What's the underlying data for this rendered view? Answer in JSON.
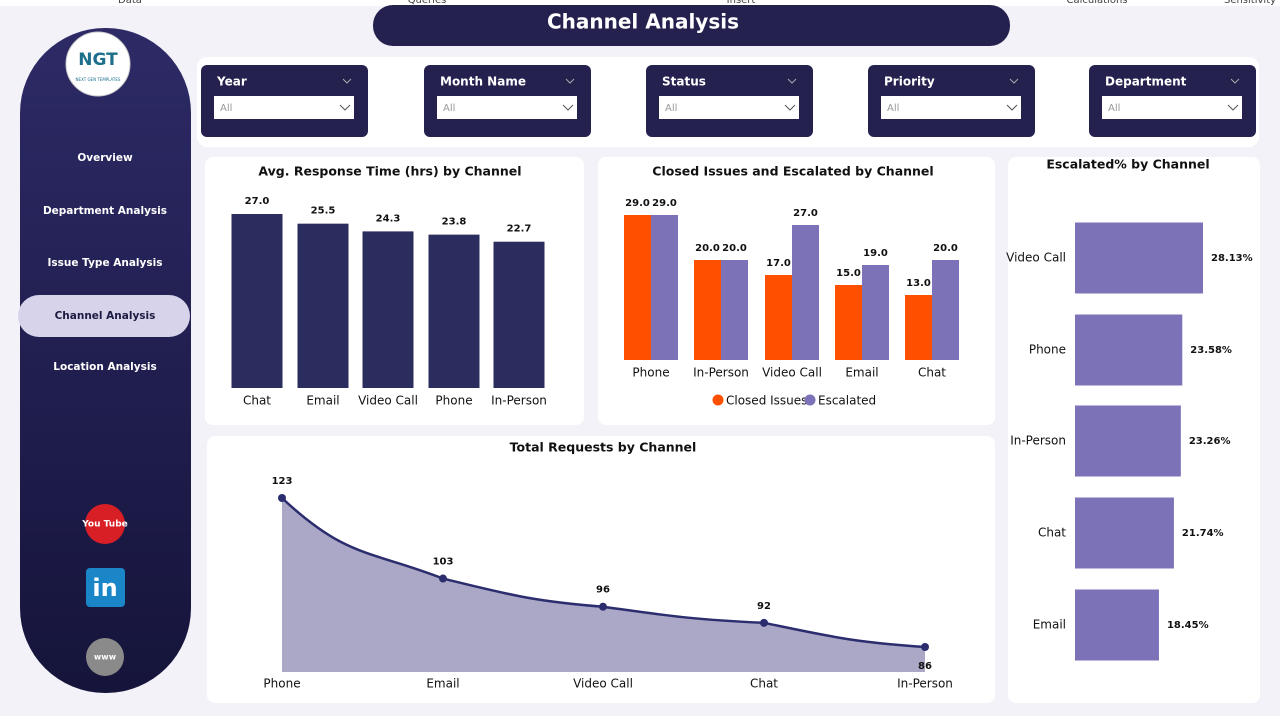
{
  "menu": [
    "Data",
    "Queries",
    "Insert",
    "Calculations",
    "Sensitivity"
  ],
  "header": {
    "title": "Channel Analysis"
  },
  "logo": {
    "text": "NGT",
    "subtitle": "NEXT GEN TEMPLATES"
  },
  "nav": [
    "Overview",
    "Department Analysis",
    "Issue Type Analysis",
    "Channel Analysis",
    "Location Analysis"
  ],
  "active_nav": 3,
  "social": [
    "You Tube",
    "in",
    "www"
  ],
  "filters": [
    {
      "label": "Year",
      "value": "All"
    },
    {
      "label": "Month Name",
      "value": "All"
    },
    {
      "label": "Status",
      "value": "All"
    },
    {
      "label": "Priority",
      "value": "All"
    },
    {
      "label": "Department",
      "value": "All"
    }
  ],
  "chart_data": [
    {
      "type": "bar",
      "title": "Avg. Response Time (hrs) by Channel",
      "categories": [
        "Chat",
        "Email",
        "Video Call",
        "Phone",
        "In-Person"
      ],
      "values": [
        27.0,
        25.5,
        24.3,
        23.8,
        22.7
      ],
      "value_labels": [
        "27.0",
        "25.5",
        "24.3",
        "23.8",
        "22.7"
      ],
      "color": "#2b2d5e"
    },
    {
      "type": "grouped-bar",
      "title": "Closed Issues and Escalated by Channel",
      "categories": [
        "Phone",
        "In-Person",
        "Video Call",
        "Email",
        "Chat"
      ],
      "legend": "bottom",
      "series": [
        {
          "name": "Closed Issues",
          "color": "#ff5000",
          "values": [
            29.0,
            20.0,
            17.0,
            15.0,
            13.0
          ],
          "value_labels": [
            "29.0",
            "20.0",
            "17.0",
            "15.0",
            "13.0"
          ]
        },
        {
          "name": "Escalated",
          "color": "#7b72b8",
          "values": [
            29.0,
            20.0,
            27.0,
            19.0,
            20.0
          ],
          "value_labels": [
            "29.0",
            "20.0",
            "27.0",
            "19.0",
            "20.0"
          ]
        }
      ]
    },
    {
      "type": "area",
      "title": "Total Requests by Channel",
      "categories": [
        "Phone",
        "Email",
        "Video Call",
        "Chat",
        "In-Person"
      ],
      "values": [
        123,
        103,
        96,
        92,
        86
      ],
      "color": "#2b2d6e"
    },
    {
      "type": "hbar",
      "title": "Escalated% by Channel",
      "categories": [
        "Video Call",
        "Phone",
        "In-Person",
        "Chat",
        "Email"
      ],
      "values": [
        28.13,
        23.58,
        23.26,
        21.74,
        18.45
      ],
      "value_labels": [
        "28.13%",
        "23.58%",
        "23.26%",
        "21.74%",
        "18.45%"
      ],
      "color": "#7b72b8"
    }
  ]
}
